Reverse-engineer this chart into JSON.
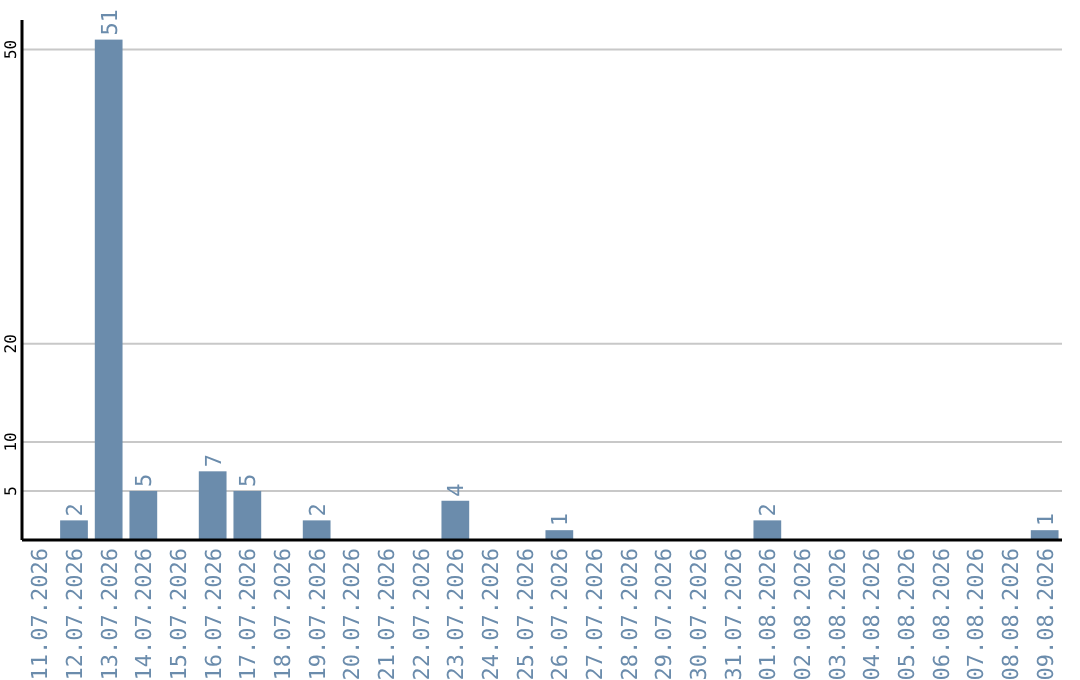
{
  "chart_data": {
    "type": "bar",
    "categories": [
      "11.07.2026",
      "12.07.2026",
      "13.07.2026",
      "14.07.2026",
      "15.07.2026",
      "16.07.2026",
      "17.07.2026",
      "18.07.2026",
      "19.07.2026",
      "20.07.2026",
      "21.07.2026",
      "22.07.2026",
      "23.07.2026",
      "24.07.2026",
      "25.07.2026",
      "26.07.2026",
      "27.07.2026",
      "28.07.2026",
      "29.07.2026",
      "30.07.2026",
      "31.07.2026",
      "01.08.2026",
      "02.08.2026",
      "03.08.2026",
      "04.08.2026",
      "05.08.2026",
      "06.08.2026",
      "07.08.2026",
      "08.08.2026",
      "09.08.2026"
    ],
    "values": [
      0,
      2,
      51,
      5,
      0,
      7,
      5,
      0,
      2,
      0,
      0,
      0,
      4,
      0,
      0,
      1,
      0,
      0,
      0,
      0,
      0,
      2,
      0,
      0,
      0,
      0,
      0,
      0,
      0,
      1
    ],
    "value_labels": [
      null,
      "2",
      "51",
      "5",
      null,
      "7",
      "5",
      null,
      "2",
      null,
      null,
      null,
      "4",
      null,
      null,
      "1",
      null,
      null,
      null,
      null,
      null,
      "2",
      null,
      null,
      null,
      null,
      null,
      null,
      null,
      "1"
    ],
    "color": "#6b8cac",
    "ylim": [
      0,
      53
    ],
    "yticks": [
      5,
      10,
      20,
      50
    ],
    "grid": "y"
  }
}
